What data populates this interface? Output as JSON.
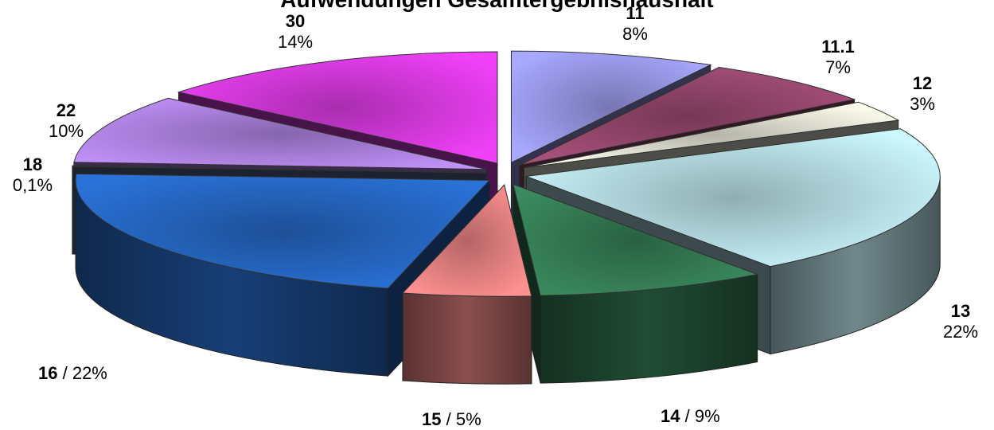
{
  "chart_data": {
    "type": "pie",
    "title": "Aufwendungen Gesamtergebnishaushalt",
    "slices": [
      {
        "label": "11",
        "pct_text": "8%",
        "value": 8,
        "color": "#a8a8ff"
      },
      {
        "label": "11.1",
        "pct_text": "7%",
        "value": 7,
        "color": "#a8507a"
      },
      {
        "label": "12",
        "pct_text": "3%",
        "value": 3,
        "color": "#fffff0"
      },
      {
        "label": "13",
        "pct_text": "22%",
        "value": 22,
        "color": "#ccf8ff"
      },
      {
        "label": "14",
        "pct_text": "9%",
        "value": 9,
        "color": "#3a8a5e"
      },
      {
        "label": "15",
        "pct_text": "5%",
        "value": 5,
        "color": "#ff9090"
      },
      {
        "label": "16",
        "pct_text": "22%",
        "value": 22,
        "color": "#2a72d8"
      },
      {
        "label": "18",
        "pct_text": "0,1%",
        "value": 0.1,
        "color": "#6070a0"
      },
      {
        "label": "22",
        "pct_text": "10%",
        "value": 10,
        "color": "#c090f8"
      },
      {
        "label": "30",
        "pct_text": "14%",
        "value": 14,
        "color": "#f040f8"
      }
    ]
  }
}
